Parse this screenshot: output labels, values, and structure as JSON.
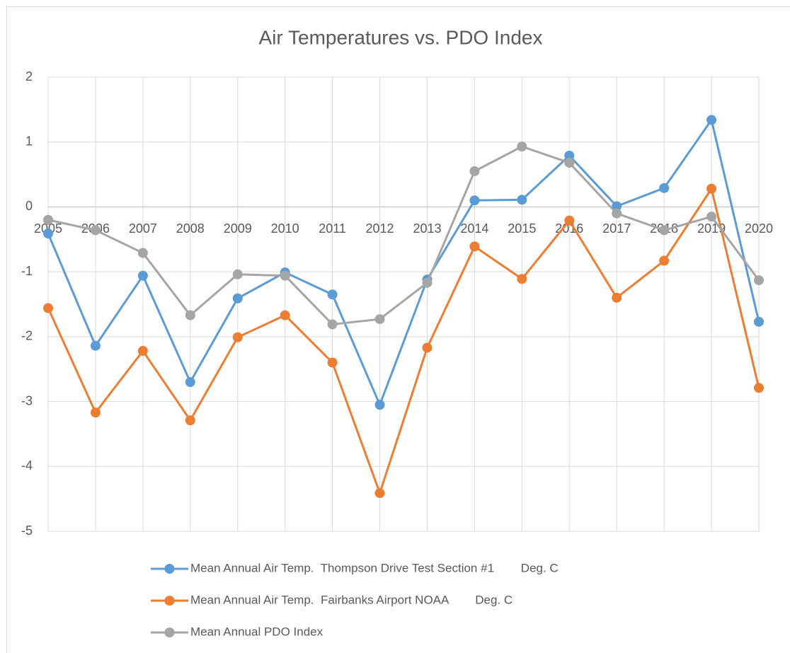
{
  "chart_data": {
    "type": "line",
    "title": "Air Temperatures vs. PDO Index",
    "categories": [
      "2005",
      "2006",
      "2007",
      "2008",
      "2009",
      "2010",
      "2011",
      "2012",
      "2013",
      "2014",
      "2015",
      "2016",
      "2017",
      "2018",
      "2019",
      "2020"
    ],
    "series": [
      {
        "name": "Mean Annual Air Temp.  Thompson Drive Test Section #1        Deg. C",
        "color": "#5b9bd5",
        "values": [
          -0.41,
          -2.14,
          -1.06,
          -2.7,
          -1.41,
          -1.01,
          -1.35,
          -3.05,
          -1.12,
          0.1,
          0.11,
          0.79,
          0.01,
          0.29,
          1.34,
          -1.77
        ]
      },
      {
        "name": "Mean Annual Air Temp.  Fairbanks Airport NOAA        Deg. C",
        "color": "#ed7d31",
        "values": [
          -1.56,
          -3.17,
          -2.22,
          -3.29,
          -2.01,
          -1.67,
          -2.4,
          -4.41,
          -2.17,
          -0.61,
          -1.11,
          -0.21,
          -1.4,
          -0.83,
          0.28,
          -2.79
        ]
      },
      {
        "name": "Mean Annual PDO Index",
        "color": "#a5a5a5",
        "values": [
          -0.2,
          -0.36,
          -0.71,
          -1.67,
          -1.04,
          -1.06,
          -1.81,
          -1.73,
          -1.17,
          0.55,
          0.93,
          0.68,
          -0.1,
          -0.36,
          -0.15,
          -1.13
        ]
      }
    ],
    "ylim": [
      -5,
      2
    ],
    "yticks": [
      -5,
      -4,
      -3,
      -2,
      -1,
      0,
      1,
      2
    ],
    "grid": true,
    "legend": "bottom"
  }
}
